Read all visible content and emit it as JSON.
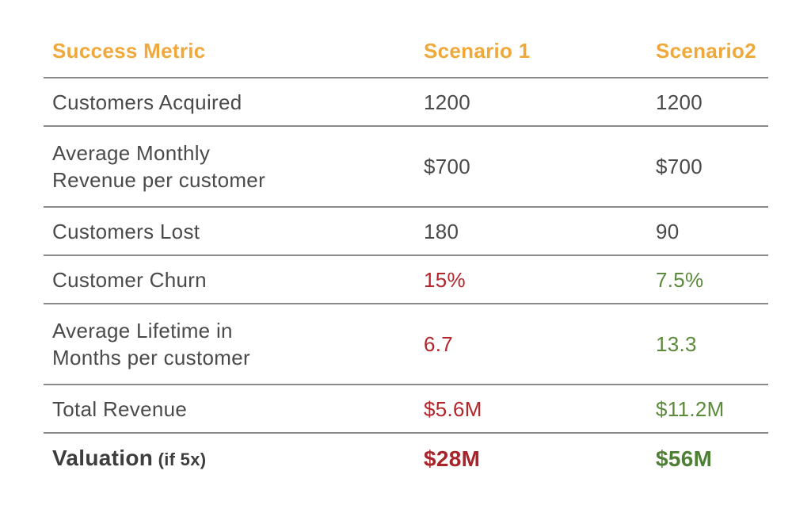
{
  "header": {
    "metric": "Success Metric",
    "scenario1": "Scenario 1",
    "scenario2": "Scenario2"
  },
  "rows": [
    {
      "metric_line1": "Customers Acquired",
      "s1": "1200",
      "s2": "1200"
    },
    {
      "metric_line1": "Average Monthly",
      "metric_line2": "Revenue per customer",
      "s1": "$700",
      "s2": "$700"
    },
    {
      "metric_line1": "Customers Lost",
      "s1": "180",
      "s2": "90"
    },
    {
      "metric_line1": "Customer Churn",
      "s1": "15%",
      "s2": "7.5%"
    },
    {
      "metric_line1": "Average Lifetime in",
      "metric_line2": "Months per customer",
      "s1": "6.7",
      "s2": "13.3"
    },
    {
      "metric_line1": "Total Revenue",
      "s1": "$5.6M",
      "s2": "$11.2M"
    }
  ],
  "valuation": {
    "label": "Valuation",
    "note": " (if 5x)",
    "s1": "$28M",
    "s2": "$56M"
  },
  "colors": {
    "header_accent": "#f0a83a",
    "negative": "#b3262b",
    "positive": "#5a8a3a",
    "rule": "#8a8a8a"
  }
}
